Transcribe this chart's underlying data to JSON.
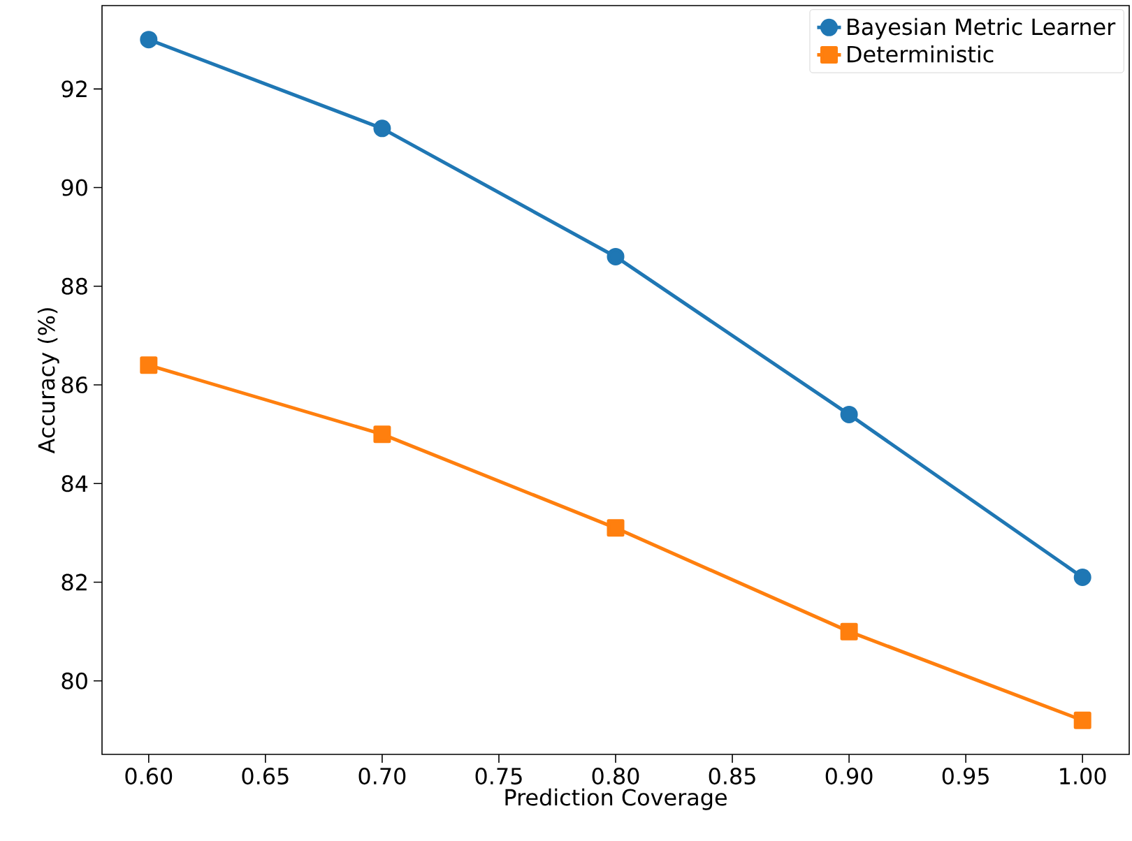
{
  "chart_data": {
    "type": "line",
    "xlabel": "Prediction Coverage",
    "ylabel": "Accuracy (%)",
    "x": [
      0.6,
      0.7,
      0.8,
      0.9,
      1.0
    ],
    "series": [
      {
        "name": "Bayesian Metric Learner",
        "color": "#1f77b4",
        "marker": "circle",
        "values": [
          93.0,
          91.2,
          88.6,
          85.4,
          82.1
        ]
      },
      {
        "name": "Deterministic",
        "color": "#ff7f0e",
        "marker": "square",
        "values": [
          86.4,
          85.0,
          83.1,
          81.0,
          79.2
        ]
      }
    ],
    "xlim": [
      0.58,
      1.02
    ],
    "ylim": [
      78.51,
      93.69
    ],
    "xticks": [
      {
        "value": 0.6,
        "label": "0.60"
      },
      {
        "value": 0.65,
        "label": "0.65"
      },
      {
        "value": 0.7,
        "label": "0.70"
      },
      {
        "value": 0.75,
        "label": "0.75"
      },
      {
        "value": 0.8,
        "label": "0.80"
      },
      {
        "value": 0.85,
        "label": "0.85"
      },
      {
        "value": 0.9,
        "label": "0.90"
      },
      {
        "value": 0.95,
        "label": "0.95"
      },
      {
        "value": 1.0,
        "label": "1.00"
      }
    ],
    "yticks": [
      80,
      82,
      84,
      86,
      88,
      90,
      92
    ],
    "legend": "top right",
    "line_style": "solid"
  }
}
